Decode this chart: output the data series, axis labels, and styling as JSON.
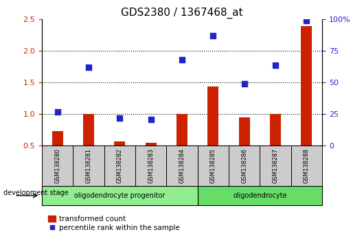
{
  "title": "GDS2380 / 1367468_at",
  "samples": [
    "GSM138280",
    "GSM138281",
    "GSM138282",
    "GSM138283",
    "GSM138284",
    "GSM138285",
    "GSM138286",
    "GSM138287",
    "GSM138288"
  ],
  "transformed_count": [
    0.73,
    1.0,
    0.57,
    0.55,
    1.0,
    1.44,
    0.95,
    1.0,
    2.4
  ],
  "percentile_rank_pct": [
    27,
    62,
    22,
    21,
    68,
    87,
    49,
    64,
    99
  ],
  "ylim_left": [
    0.5,
    2.5
  ],
  "ylim_right": [
    0,
    100
  ],
  "yticks_left": [
    0.5,
    1.0,
    1.5,
    2.0,
    2.5
  ],
  "yticks_right": [
    0,
    25,
    50,
    75,
    100
  ],
  "ytick_labels_right": [
    "0",
    "25",
    "50",
    "75",
    "100%"
  ],
  "bar_color": "#cc2200",
  "dot_color": "#2222cc",
  "groups": [
    {
      "label": "oligodendrocyte progenitor",
      "start": 0,
      "end": 4,
      "color": "#90ee90"
    },
    {
      "label": "oligodendrocyte",
      "start": 5,
      "end": 8,
      "color": "#66dd66"
    }
  ],
  "legend_bar_label": "transformed count",
  "legend_dot_label": "percentile rank within the sample",
  "title_fontsize": 11,
  "tick_fontsize": 8,
  "bar_width": 0.35,
  "dot_size": 30,
  "sample_box_color": "#cccccc",
  "dev_stage_label": "development stage"
}
